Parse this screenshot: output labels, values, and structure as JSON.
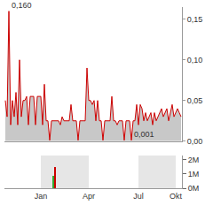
{
  "chart_data": [
    {
      "type": "area",
      "color": "#cc0000",
      "categories": [
        null,
        null,
        null,
        null,
        null,
        null,
        null,
        null,
        null,
        null,
        null,
        null,
        null,
        null,
        null,
        null,
        null,
        null,
        null,
        null,
        "Jan",
        null,
        null,
        null,
        null,
        null,
        null,
        null,
        null,
        null,
        null,
        null,
        null,
        null,
        null,
        null,
        null,
        null,
        null,
        null,
        null,
        null,
        null,
        null,
        null,
        null,
        null,
        "Apr",
        null,
        null,
        null,
        null,
        null,
        null,
        null,
        null,
        null,
        null,
        null,
        null,
        null,
        null,
        null,
        null,
        null,
        null,
        null,
        null,
        null,
        null,
        null,
        null,
        null,
        null,
        null,
        "Jul",
        null,
        null,
        null,
        null,
        null,
        null,
        null,
        null,
        null,
        null,
        null,
        null,
        null,
        null,
        null,
        null,
        null,
        null,
        null,
        null,
        "Okt",
        null,
        null,
        null
      ],
      "values": [
        0.05,
        0.03,
        0.16,
        0.02,
        0.05,
        0.03,
        0.06,
        0.02,
        0.1,
        0.03,
        0.05,
        0.05,
        0.055,
        0.02,
        0.055,
        0.055,
        0.055,
        0.02,
        0.055,
        0.055,
        0.055,
        0.02,
        0.07,
        0.025,
        0.025,
        0.001,
        0.025,
        0.025,
        0.025,
        0.025,
        0.025,
        0.02,
        0.03,
        0.025,
        0.025,
        0.025,
        0.025,
        0.045,
        0.025,
        0.025,
        0.025,
        0.001,
        0.025,
        0.025,
        0.025,
        0.025,
        0.09,
        0.05,
        0.05,
        0.045,
        0.05,
        0.025,
        0.05,
        0.025,
        0.025,
        0.001,
        0.025,
        0.025,
        0.025,
        0.025,
        0.055,
        0.025,
        0.025,
        0.02,
        0.025,
        0.025,
        0.025,
        0.001,
        0.025,
        0.025,
        0.025,
        0.001,
        0.025,
        0.025,
        0.045,
        0.02,
        0.045,
        0.04,
        0.025,
        0.035,
        0.025,
        0.03,
        0.035,
        0.02,
        0.035,
        0.025,
        0.03,
        0.035,
        0.04,
        0.03,
        0.035,
        0.04,
        0.025,
        0.035,
        0.045,
        0.03,
        0.035,
        0.04,
        0.035,
        0.03
      ],
      "ylim": [
        0,
        0.165
      ],
      "yticks": [
        {
          "value": 0,
          "label": "0,00"
        },
        {
          "value": 0.05,
          "label": "0,05"
        },
        {
          "value": 0.1,
          "label": "0,10"
        },
        {
          "value": 0.15,
          "label": "0,15"
        }
      ],
      "tick_labels": "y",
      "grid": false,
      "annotations": [
        {
          "text": "0,160",
          "x": 2,
          "y": 0.16
        },
        {
          "text": "0,001",
          "x": 71,
          "y": 0.001
        }
      ]
    },
    {
      "type": "bar",
      "categories": [
        null,
        null,
        null,
        null,
        null,
        null,
        null,
        null,
        null,
        null,
        null,
        null,
        null,
        null,
        null,
        null,
        null,
        null,
        null,
        null,
        "Jan",
        null,
        null,
        null,
        null,
        null,
        null,
        null,
        null,
        null,
        null,
        null,
        null,
        null,
        null,
        null,
        null,
        null,
        null,
        null,
        null,
        null,
        null,
        null,
        null,
        null,
        null,
        "Apr",
        null,
        null,
        null,
        null,
        null,
        null,
        null,
        null,
        null,
        null,
        null,
        null,
        null,
        null,
        null,
        null,
        null,
        null,
        null,
        null,
        null,
        null,
        null,
        null,
        null,
        null,
        null,
        "Jul",
        null,
        null,
        null,
        null,
        null,
        null,
        null,
        null,
        null,
        null,
        null,
        null,
        null,
        null,
        null,
        null,
        null,
        null,
        null,
        null,
        "Okt",
        null,
        null,
        null
      ],
      "values": [
        0,
        0,
        0,
        0,
        0,
        0,
        0,
        0,
        0,
        0,
        0,
        0,
        0,
        0,
        0,
        0,
        0,
        0,
        0,
        0,
        0,
        0,
        0,
        0,
        0,
        0,
        0,
        900000,
        1500000,
        0,
        0,
        0,
        0,
        0,
        0,
        0,
        0,
        0,
        0,
        0,
        0,
        0,
        0,
        0,
        0,
        0,
        0,
        0,
        0,
        0,
        0,
        0,
        0,
        0,
        0,
        0,
        0,
        0,
        0,
        0,
        0,
        0,
        0,
        0,
        0,
        0,
        0,
        0,
        0,
        0,
        0,
        0,
        0,
        0,
        0,
        0,
        0,
        0,
        0,
        0,
        0,
        0,
        0,
        0,
        0,
        0,
        0,
        0,
        0,
        0,
        0,
        0,
        0,
        0,
        0,
        0,
        0,
        0,
        0,
        0
      ],
      "colors": [
        "#cc0000",
        "#cc0000",
        "#cc0000",
        "#cc0000",
        "#cc0000",
        "#cc0000",
        "#cc0000",
        "#cc0000",
        "#cc0000",
        "#cc0000",
        "#cc0000",
        "#cc0000",
        "#cc0000",
        "#cc0000",
        "#cc0000",
        "#cc0000",
        "#cc0000",
        "#cc0000",
        "#cc0000",
        "#cc0000",
        "#cc0000",
        "#cc0000",
        "#cc0000",
        "#cc0000",
        "#cc0000",
        "#cc0000",
        "#cc0000",
        "#33aa33",
        "#cc0000",
        "#cc0000",
        "#cc0000",
        "#cc0000",
        "#cc0000",
        "#cc0000",
        "#cc0000",
        "#cc0000",
        "#cc0000",
        "#cc0000",
        "#cc0000",
        "#cc0000",
        "#cc0000",
        "#cc0000",
        "#cc0000",
        "#cc0000",
        "#cc0000",
        "#cc0000",
        "#cc0000",
        "#cc0000",
        "#cc0000",
        "#cc0000",
        "#cc0000",
        "#cc0000",
        "#cc0000",
        "#cc0000",
        "#cc0000",
        "#cc0000",
        "#cc0000",
        "#cc0000",
        "#cc0000",
        "#cc0000",
        "#cc0000",
        "#cc0000",
        "#cc0000",
        "#cc0000",
        "#cc0000",
        "#cc0000",
        "#cc0000",
        "#cc0000",
        "#cc0000",
        "#cc0000",
        "#cc0000",
        "#cc0000",
        "#cc0000",
        "#cc0000",
        "#cc0000",
        "#cc0000",
        "#cc0000",
        "#cc0000",
        "#cc0000",
        "#cc0000",
        "#cc0000",
        "#cc0000",
        "#cc0000",
        "#cc0000",
        "#cc0000",
        "#cc0000",
        "#cc0000",
        "#cc0000",
        "#cc0000",
        "#cc0000",
        "#cc0000",
        "#cc0000",
        "#cc0000",
        "#cc0000",
        "#cc0000",
        "#cc0000",
        "#cc0000",
        "#cc0000",
        "#cc0000",
        "#cc0000"
      ],
      "ylim": [
        0,
        2300000
      ],
      "yticks": [
        {
          "value": 0,
          "label": "0M"
        },
        {
          "value": 1000000,
          "label": "1M"
        },
        {
          "value": 2000000,
          "label": "2M"
        }
      ],
      "grid": false
    }
  ]
}
